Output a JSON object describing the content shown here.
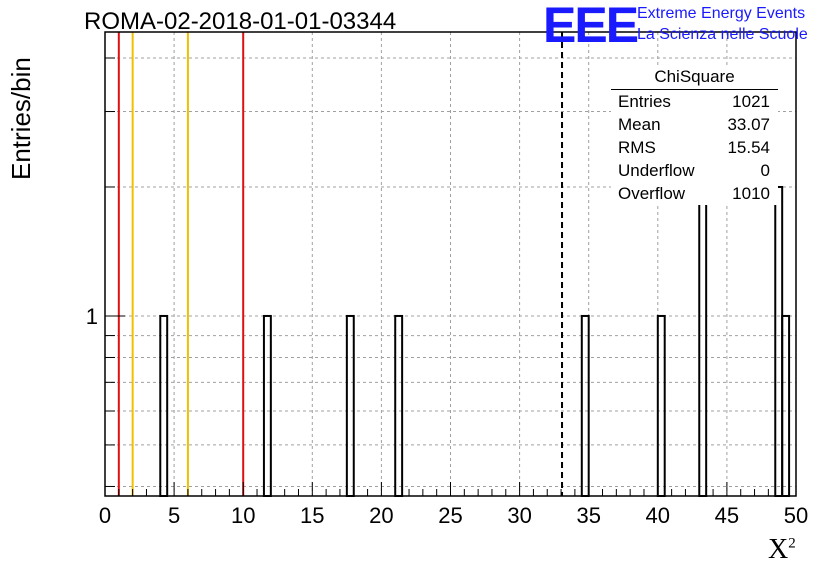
{
  "title": "ROMA-02-2018-01-01-03344",
  "logo": {
    "mark": "EEE",
    "line1": "Extreme Energy Events",
    "line2": "La Scienza nelle Scuole",
    "color": "#1a1aff"
  },
  "chart_data": {
    "type": "bar",
    "title": "ROMA-02-2018-01-01-03344",
    "xlabel": "X",
    "xlabel_sup": "2",
    "ylabel": "Entries/bin",
    "xlim": [
      0,
      50
    ],
    "ylim": [
      0.38,
      4.6
    ],
    "yscale": "log",
    "bin_width": 0.5,
    "x_ticks": [
      0,
      5,
      10,
      15,
      20,
      25,
      30,
      35,
      40,
      45,
      50
    ],
    "y_ticks": [
      1
    ],
    "grid": true,
    "bins": [
      {
        "x": 4.0,
        "count": 1
      },
      {
        "x": 11.5,
        "count": 1
      },
      {
        "x": 17.5,
        "count": 1
      },
      {
        "x": 21.0,
        "count": 1
      },
      {
        "x": 34.5,
        "count": 1
      },
      {
        "x": 40.0,
        "count": 1
      },
      {
        "x": 43.0,
        "count": 2
      },
      {
        "x": 48.5,
        "count": 2
      },
      {
        "x": 49.0,
        "count": 1
      }
    ],
    "reference_lines": [
      {
        "x": 1,
        "color": "#dd1111",
        "style": "solid"
      },
      {
        "x": 2,
        "color": "#f0c000",
        "style": "solid"
      },
      {
        "x": 6,
        "color": "#f0c000",
        "style": "solid"
      },
      {
        "x": 10,
        "color": "#dd1111",
        "style": "solid"
      },
      {
        "x": 33.07,
        "color": "#000000",
        "style": "dashed"
      }
    ],
    "stats_box": {
      "title": "ChiSquare",
      "rows": [
        {
          "label": "Entries",
          "value": "1021"
        },
        {
          "label": "Mean",
          "value": "33.07"
        },
        {
          "label": "RMS",
          "value": "15.54"
        },
        {
          "label": "Underflow",
          "value": "0"
        },
        {
          "label": "Overflow",
          "value": "1010"
        }
      ]
    }
  }
}
